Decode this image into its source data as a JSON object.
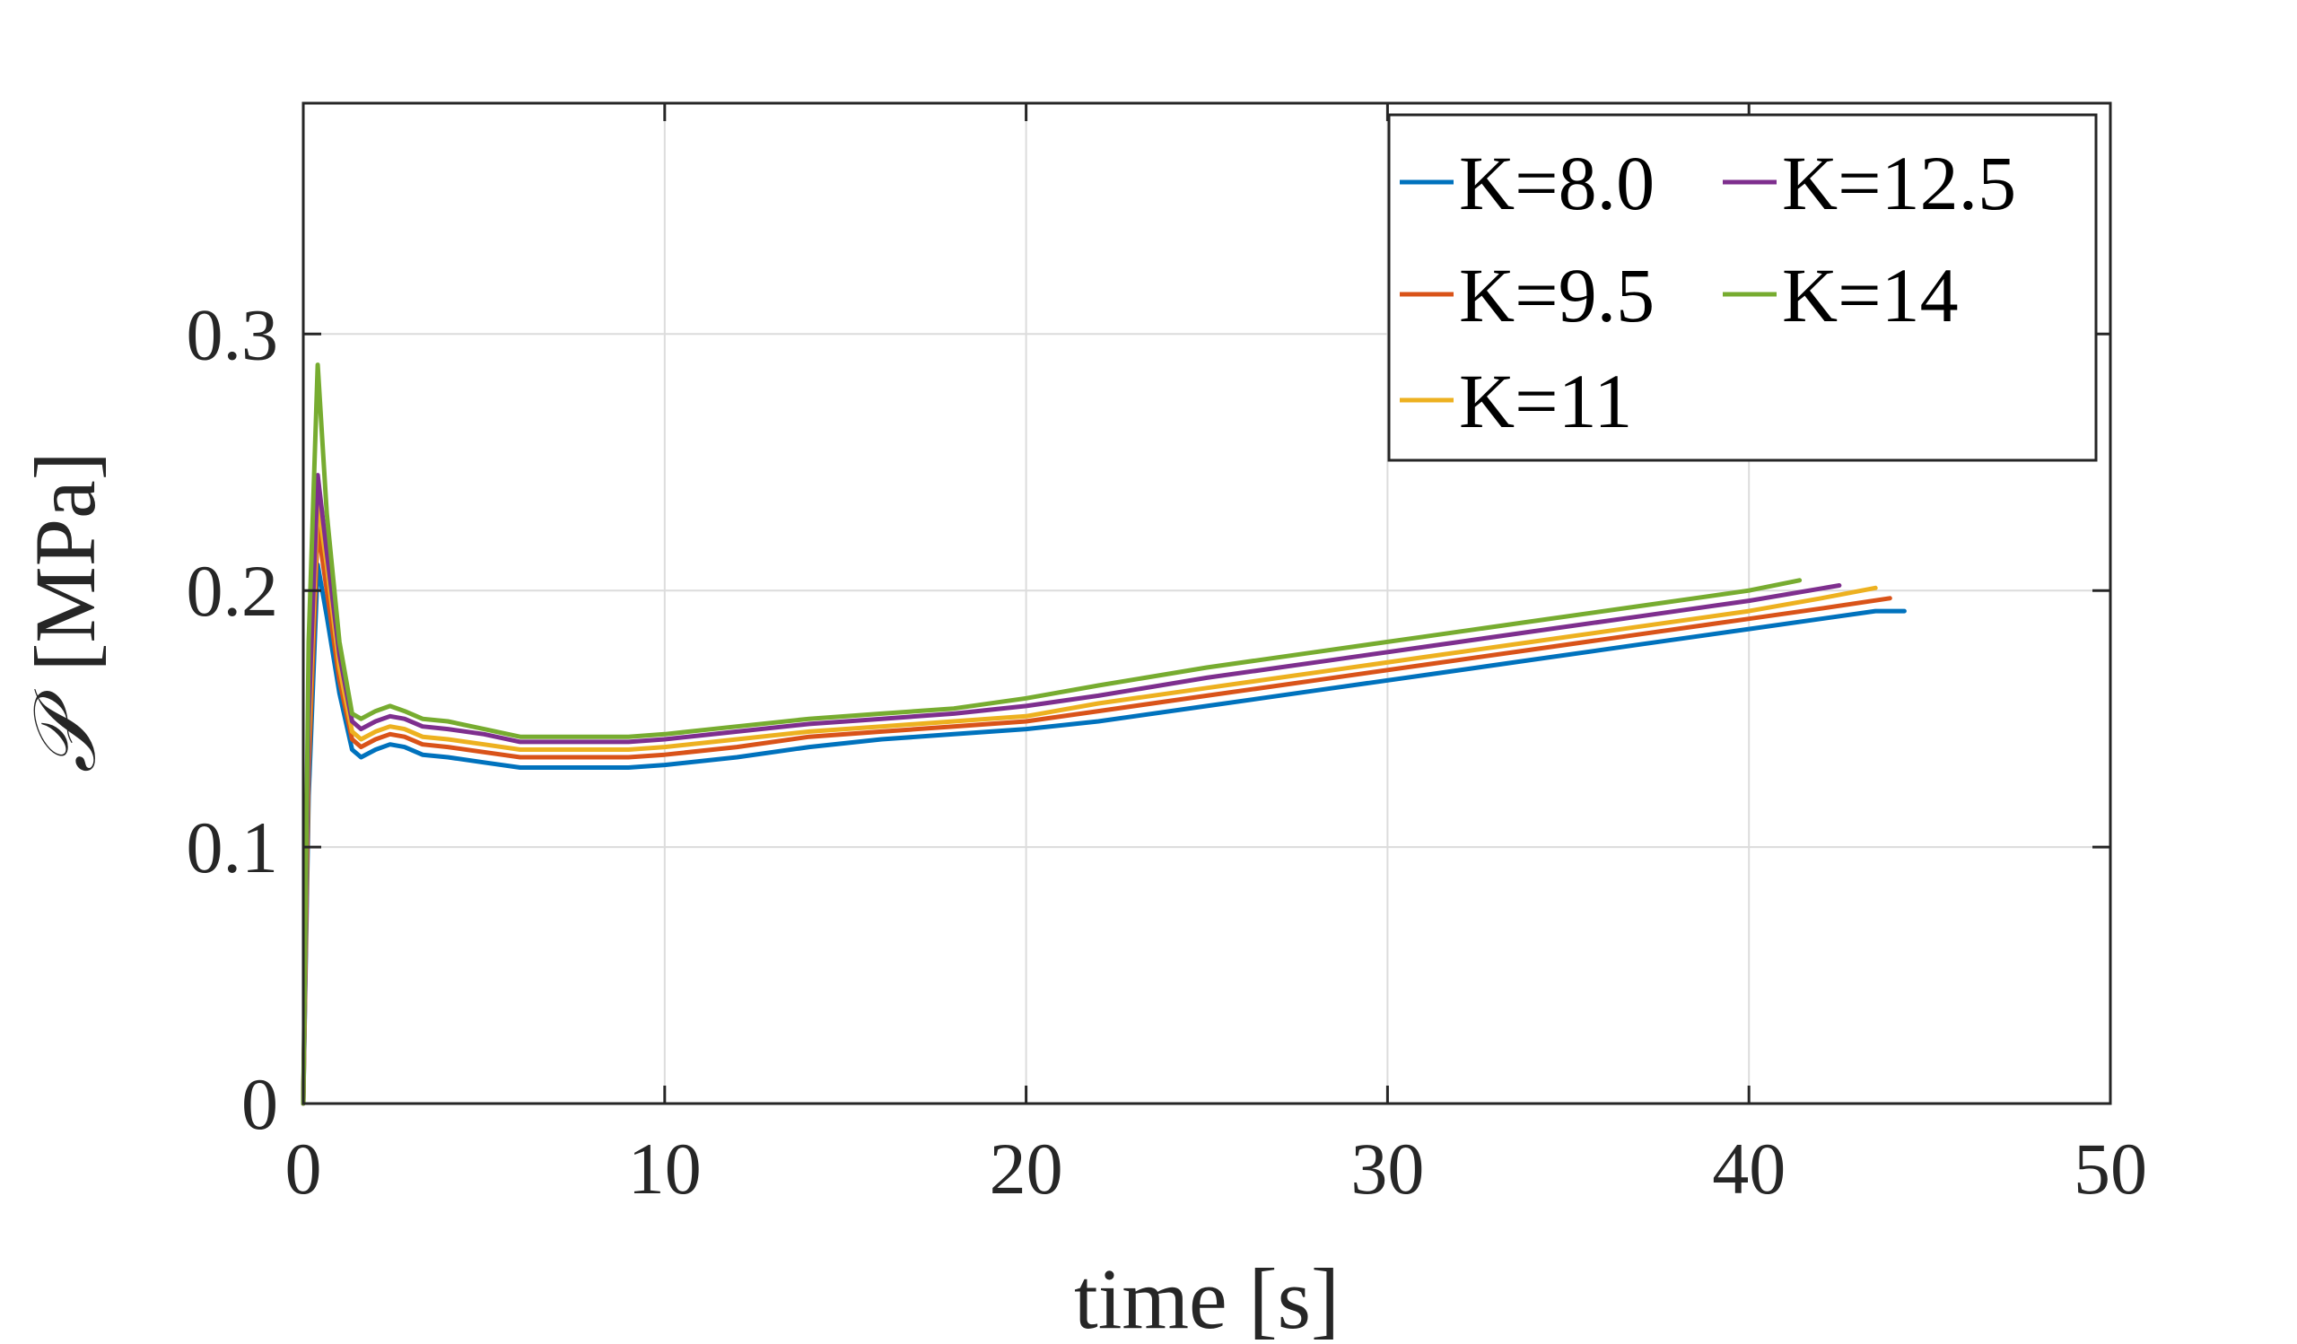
{
  "chart_data": {
    "type": "line",
    "title": "",
    "xlabel": "time [s]",
    "ylabel_symbol": "𝒫",
    "ylabel_unit": "[MPa]",
    "xlim": [
      0,
      50
    ],
    "ylim": [
      0,
      0.39
    ],
    "xticks": [
      0,
      10,
      20,
      30,
      40,
      50
    ],
    "xtick_labels": [
      "0",
      "10",
      "20",
      "30",
      "40",
      "50"
    ],
    "yticks": [
      0,
      0.1,
      0.2,
      0.3
    ],
    "ytick_labels": [
      "0",
      "0.1",
      "0.2",
      "0.3"
    ],
    "grid": true,
    "legend_position": "top-right",
    "colors": {
      "axis": "#262626",
      "grid": "#dcdcdc"
    },
    "series": [
      {
        "name": "K=8.0",
        "color": "#0072BD",
        "x": [
          0,
          0.15,
          0.4,
          0.65,
          1.0,
          1.35,
          1.6,
          2.0,
          2.4,
          2.8,
          3.3,
          4.0,
          5.0,
          6.0,
          7.0,
          8.0,
          9.0,
          10.0,
          12.0,
          14.0,
          16.0,
          18.0,
          20.0,
          22.0,
          25.0,
          28.0,
          31.0,
          34.0,
          37.0,
          40.0,
          42.0,
          43.5,
          44.3
        ],
        "y": [
          0,
          0.12,
          0.21,
          0.19,
          0.16,
          0.138,
          0.135,
          0.138,
          0.14,
          0.139,
          0.136,
          0.135,
          0.133,
          0.131,
          0.131,
          0.131,
          0.131,
          0.132,
          0.135,
          0.139,
          0.142,
          0.144,
          0.146,
          0.149,
          0.155,
          0.161,
          0.167,
          0.173,
          0.179,
          0.185,
          0.189,
          0.192,
          0.192
        ]
      },
      {
        "name": "K=9.5",
        "color": "#D95319",
        "x": [
          0,
          0.15,
          0.4,
          0.65,
          1.0,
          1.35,
          1.6,
          2.0,
          2.4,
          2.8,
          3.3,
          4.0,
          5.0,
          6.0,
          7.0,
          8.0,
          9.0,
          10.0,
          12.0,
          14.0,
          16.0,
          18.0,
          20.0,
          22.0,
          25.0,
          28.0,
          31.0,
          34.0,
          37.0,
          40.0,
          42.0,
          43.9
        ],
        "y": [
          0,
          0.13,
          0.225,
          0.2,
          0.165,
          0.142,
          0.139,
          0.142,
          0.144,
          0.143,
          0.14,
          0.139,
          0.137,
          0.135,
          0.135,
          0.135,
          0.135,
          0.136,
          0.139,
          0.143,
          0.145,
          0.147,
          0.149,
          0.153,
          0.159,
          0.165,
          0.171,
          0.177,
          0.183,
          0.189,
          0.193,
          0.197
        ]
      },
      {
        "name": "K=11",
        "color": "#EDB120",
        "x": [
          0,
          0.15,
          0.4,
          0.65,
          1.0,
          1.35,
          1.6,
          2.0,
          2.4,
          2.8,
          3.3,
          4.0,
          5.0,
          6.0,
          7.0,
          8.0,
          9.0,
          10.0,
          12.0,
          14.0,
          16.0,
          18.0,
          20.0,
          22.0,
          25.0,
          28.0,
          31.0,
          34.0,
          37.0,
          40.0,
          42.0,
          43.5
        ],
        "y": [
          0,
          0.14,
          0.235,
          0.21,
          0.17,
          0.145,
          0.142,
          0.145,
          0.147,
          0.146,
          0.143,
          0.142,
          0.14,
          0.138,
          0.138,
          0.138,
          0.138,
          0.139,
          0.142,
          0.145,
          0.147,
          0.149,
          0.151,
          0.156,
          0.162,
          0.168,
          0.174,
          0.18,
          0.186,
          0.192,
          0.197,
          0.201
        ]
      },
      {
        "name": "K=12.5",
        "color": "#7E2F8E",
        "x": [
          0,
          0.15,
          0.4,
          0.65,
          1.0,
          1.35,
          1.6,
          2.0,
          2.4,
          2.8,
          3.3,
          4.0,
          5.0,
          6.0,
          7.0,
          8.0,
          9.0,
          10.0,
          12.0,
          14.0,
          16.0,
          18.0,
          20.0,
          22.0,
          25.0,
          28.0,
          31.0,
          34.0,
          37.0,
          40.0,
          42.5
        ],
        "y": [
          0,
          0.15,
          0.245,
          0.215,
          0.175,
          0.149,
          0.146,
          0.149,
          0.151,
          0.15,
          0.147,
          0.146,
          0.144,
          0.141,
          0.141,
          0.141,
          0.141,
          0.142,
          0.145,
          0.148,
          0.15,
          0.152,
          0.155,
          0.159,
          0.166,
          0.172,
          0.178,
          0.184,
          0.19,
          0.196,
          0.202
        ]
      },
      {
        "name": "K=14",
        "color": "#77AC30",
        "x": [
          0,
          0.15,
          0.4,
          0.65,
          1.0,
          1.35,
          1.6,
          2.0,
          2.4,
          2.8,
          3.3,
          4.0,
          5.0,
          6.0,
          7.0,
          8.0,
          9.0,
          10.0,
          12.0,
          14.0,
          16.0,
          18.0,
          20.0,
          22.0,
          25.0,
          28.0,
          31.0,
          34.0,
          37.0,
          40.0,
          41.4
        ],
        "y": [
          0,
          0.18,
          0.288,
          0.23,
          0.18,
          0.152,
          0.15,
          0.153,
          0.155,
          0.153,
          0.15,
          0.149,
          0.146,
          0.143,
          0.143,
          0.143,
          0.143,
          0.144,
          0.147,
          0.15,
          0.152,
          0.154,
          0.158,
          0.163,
          0.17,
          0.176,
          0.182,
          0.188,
          0.194,
          0.2,
          0.204
        ]
      }
    ]
  }
}
